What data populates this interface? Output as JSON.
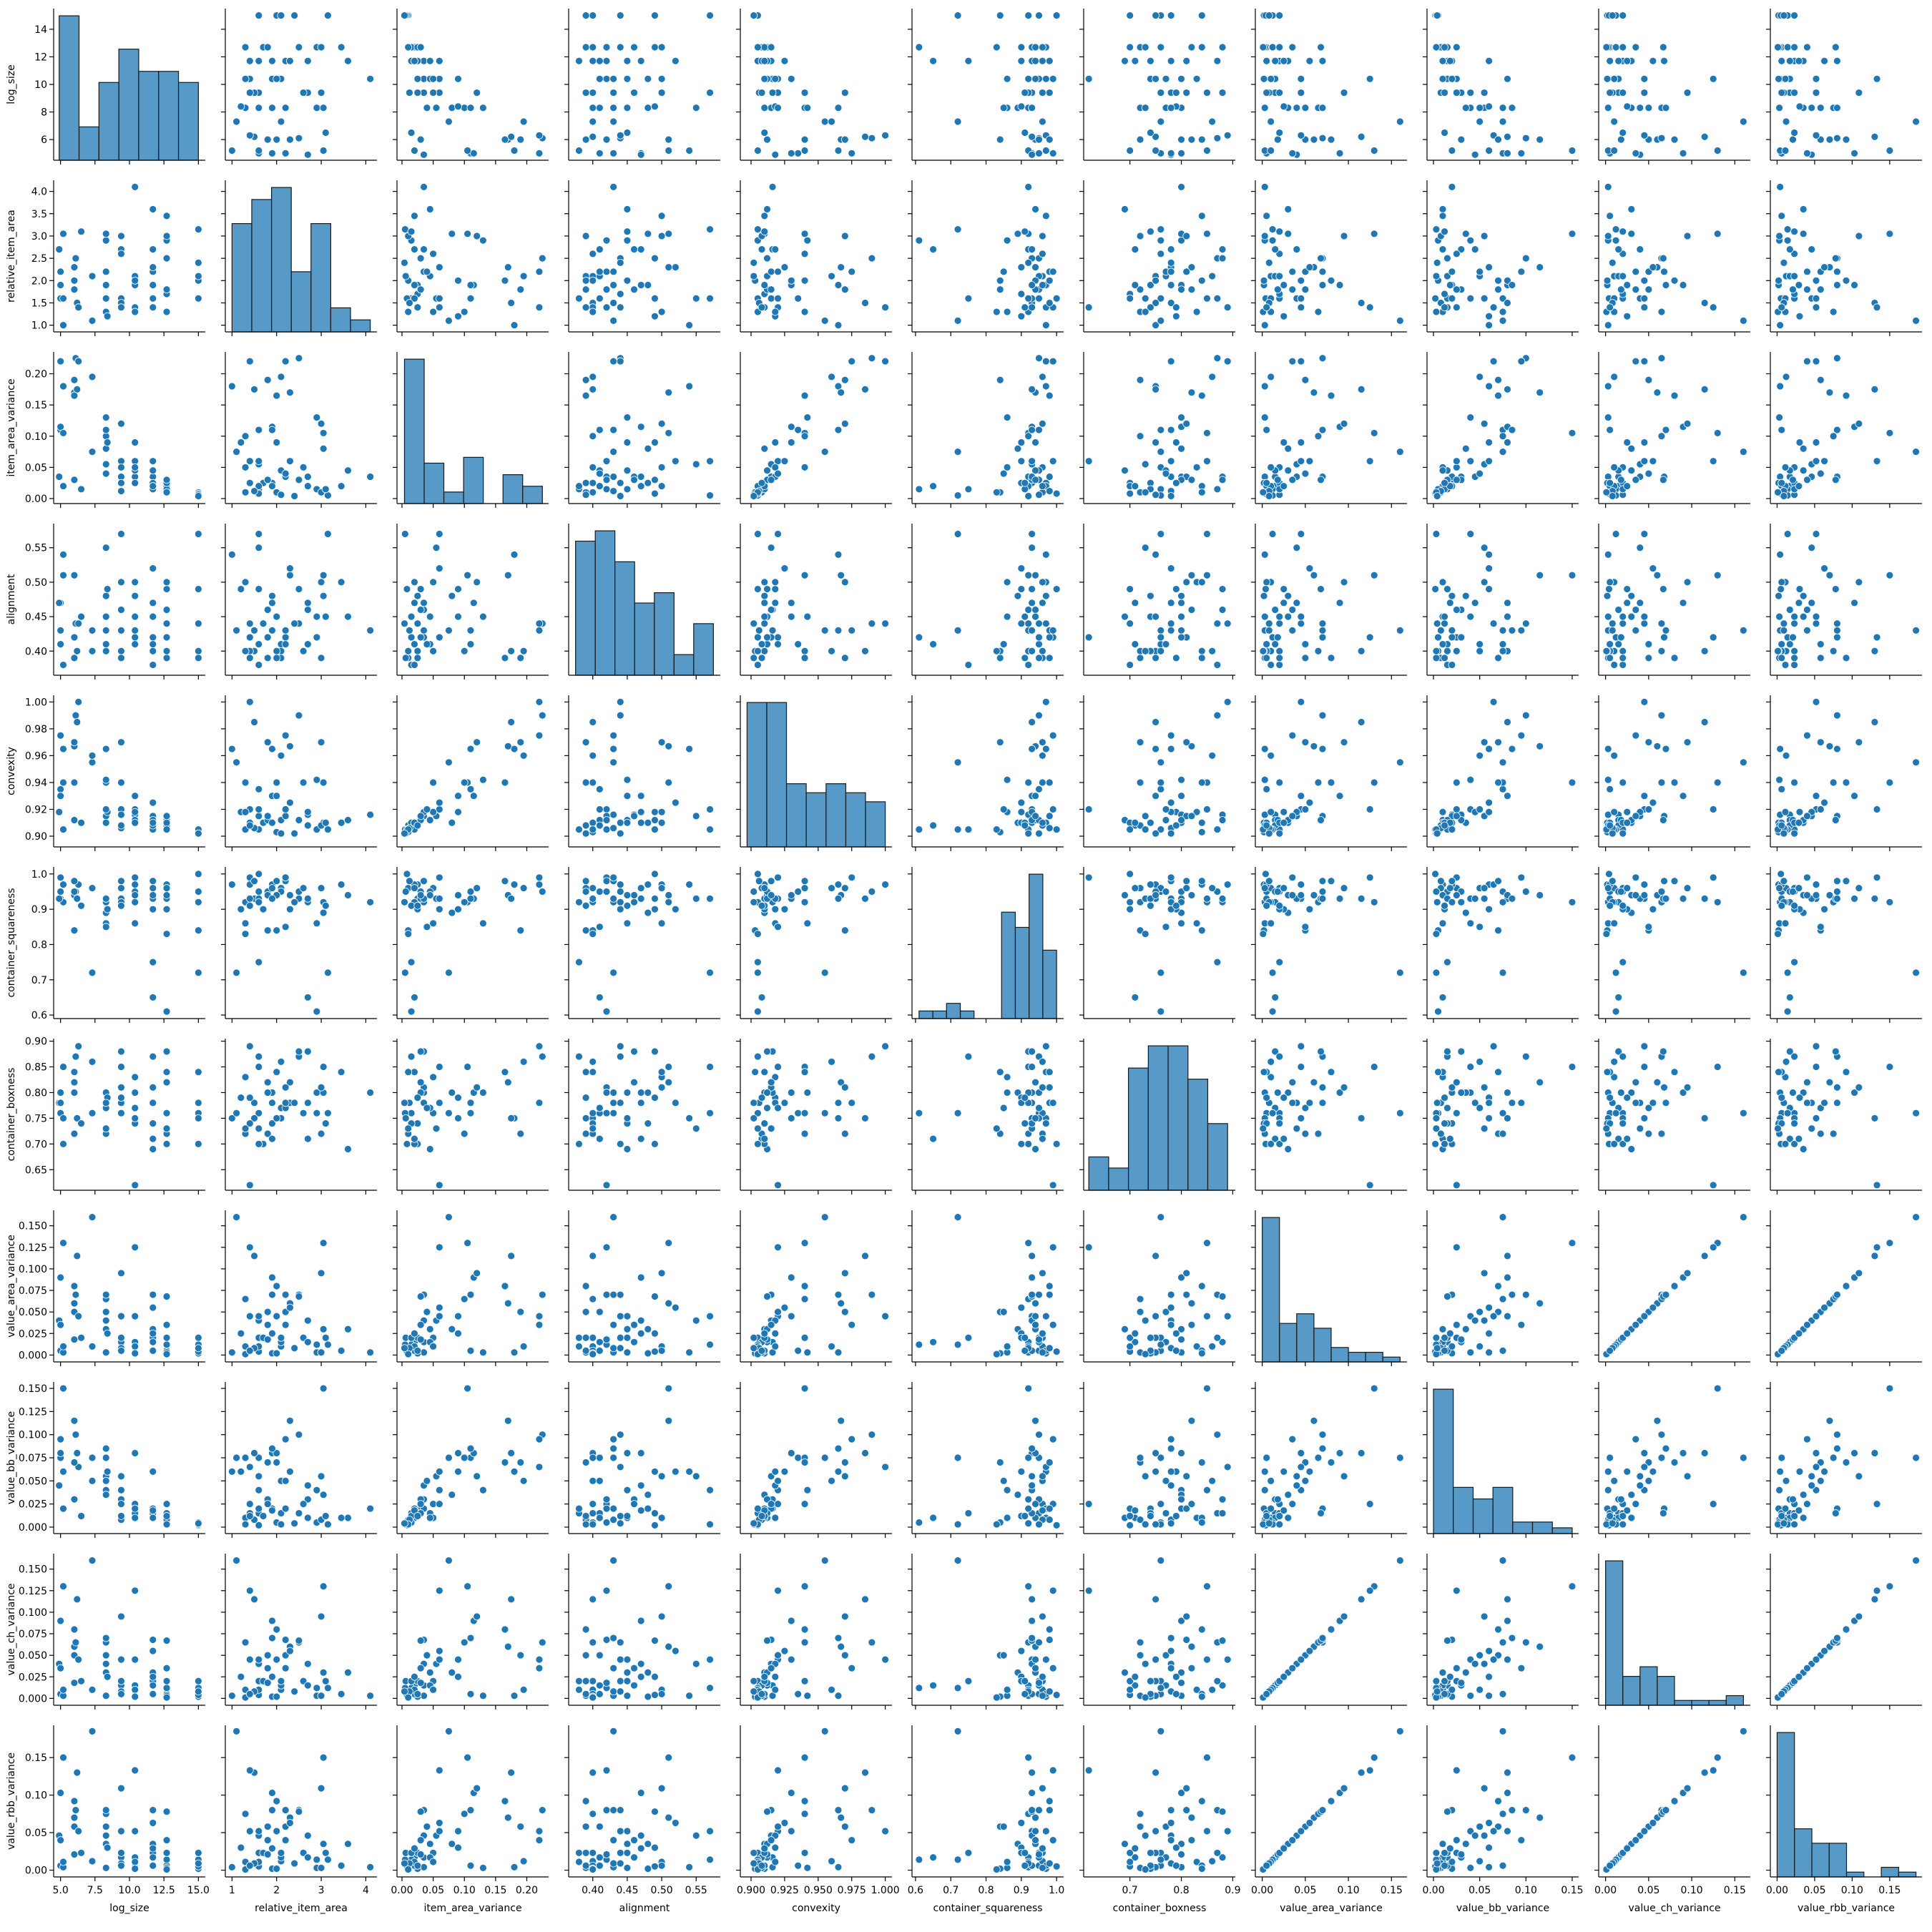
{
  "chart_data": {
    "type": "pairplot",
    "color": "#1f77b4",
    "variables": [
      {
        "name": "log_size",
        "lim": [
          4.5,
          15.5
        ],
        "xticks": [
          {
            "value": 5,
            "label": "5.0"
          },
          7.5,
          {
            "value": 10,
            "label": "10.0"
          },
          12.5,
          {
            "value": 15,
            "label": "15.0"
          }
        ],
        "yticks": [
          6,
          8,
          10,
          12,
          14
        ],
        "bins": [
          4.9,
          6.343,
          7.786,
          9.229,
          10.671,
          12.114,
          13.557,
          15.0
        ],
        "counts": [
          13,
          3,
          7,
          10,
          8,
          8,
          7
        ]
      },
      {
        "name": "relative_item_area",
        "lim": [
          0.85,
          4.25
        ],
        "xticks": [
          1,
          2,
          3,
          4
        ],
        "yticks": [
          {
            "value": 1,
            "label": "1.0"
          },
          1.5,
          {
            "value": 2,
            "label": "2.0"
          },
          2.5,
          {
            "value": 3,
            "label": "3.0"
          },
          3.5,
          {
            "value": 4,
            "label": "4.0"
          }
        ],
        "bins": [
          1.0,
          1.443,
          1.886,
          2.329,
          2.771,
          3.214,
          3.657,
          4.1
        ],
        "counts": [
          9,
          11,
          12,
          5,
          9,
          2,
          1
        ]
      },
      {
        "name": "item_area_variance",
        "lim": [
          -0.008,
          0.235
        ],
        "xticks": [
          {
            "value": 0,
            "label": "0.00"
          },
          0.05,
          {
            "value": 0.1,
            "label": "0.10"
          },
          0.15,
          {
            "value": 0.2,
            "label": "0.20"
          }
        ],
        "yticks": [
          {
            "value": 0,
            "label": "0.00"
          },
          0.05,
          {
            "value": 0.1,
            "label": "0.10"
          },
          0.15,
          {
            "value": 0.2,
            "label": "0.20"
          }
        ],
        "bins": [
          0.004,
          0.0356,
          0.0671,
          0.0987,
          0.1303,
          0.1619,
          0.1934,
          0.225
        ],
        "counts": [
          25,
          7,
          2,
          8,
          0,
          5,
          3
        ]
      },
      {
        "name": "alignment",
        "lim": [
          0.365,
          0.585
        ],
        "xticks": [
          {
            "value": 0.4,
            "label": "0.40"
          },
          0.45,
          {
            "value": 0.5,
            "label": "0.50"
          },
          0.55
        ],
        "yticks": [
          {
            "value": 0.4,
            "label": "0.40"
          },
          0.45,
          {
            "value": 0.5,
            "label": "0.50"
          },
          0.55
        ],
        "bins": [
          0.375,
          0.4036,
          0.4321,
          0.4607,
          0.4893,
          0.5179,
          0.5464,
          0.575
        ],
        "counts": [
          13,
          14,
          11,
          7,
          8,
          2,
          5
        ]
      },
      {
        "name": "convexity",
        "lim": [
          0.892,
          1.005
        ],
        "xticks": [
          {
            "value": 0.9,
            "label": "0.900"
          },
          0.925,
          {
            "value": 0.95,
            "label": "0.950"
          },
          0.975,
          {
            "value": 1,
            "label": "1.000"
          }
        ],
        "yticks": [
          {
            "value": 0.9,
            "label": "0.90"
          },
          0.92,
          0.94,
          0.96,
          0.98,
          {
            "value": 1,
            "label": "1.00"
          }
        ],
        "bins": [
          0.897,
          0.9117,
          0.9264,
          0.9411,
          0.9559,
          0.9706,
          0.9853,
          1.0
        ],
        "counts": [
          16,
          16,
          7,
          6,
          7,
          6,
          5
        ]
      },
      {
        "name": "container_squareness",
        "lim": [
          0.59,
          1.02
        ],
        "xticks": [
          0.6,
          0.7,
          0.8,
          0.9,
          {
            "value": 1,
            "label": "1.0"
          }
        ],
        "yticks": [
          0.6,
          0.7,
          0.8,
          0.9,
          {
            "value": 1,
            "label": "1.0"
          }
        ],
        "bins": [
          0.61,
          0.649,
          0.688,
          0.727,
          0.766,
          0.805,
          0.844,
          0.883,
          0.922,
          0.961,
          1.0
        ],
        "counts": [
          1,
          1,
          2,
          1,
          0,
          0,
          14,
          12,
          19,
          9
        ]
      },
      {
        "name": "container_boxness",
        "lim": [
          0.61,
          0.905
        ],
        "xticks": [
          0.7,
          0.8,
          0.9
        ],
        "yticks": [
          0.65,
          {
            "value": 0.7,
            "label": "0.70"
          },
          0.75,
          {
            "value": 0.8,
            "label": "0.80"
          },
          0.85,
          {
            "value": 0.9,
            "label": "0.90"
          }
        ],
        "bins": [
          0.62,
          0.6586,
          0.6971,
          0.7357,
          0.7743,
          0.8129,
          0.8514,
          0.89
        ],
        "counts": [
          3,
          2,
          11,
          13,
          13,
          10,
          6
        ]
      },
      {
        "name": "value_area_variance",
        "lim": [
          -0.008,
          0.168
        ],
        "xticks": [
          {
            "value": 0,
            "label": "0.00"
          },
          0.05,
          {
            "value": 0.1,
            "label": "0.10"
          },
          0.15
        ],
        "yticks": [
          {
            "value": 0,
            "label": "0.000"
          },
          0.025,
          {
            "value": 0.05,
            "label": "0.050"
          },
          0.075,
          {
            "value": 0.1,
            "label": "0.100"
          },
          0.125,
          {
            "value": 0.15,
            "label": "0.150"
          }
        ],
        "bins": [
          0,
          0.02,
          0.04,
          0.06,
          0.08,
          0.1,
          0.12,
          0.14,
          0.16
        ],
        "counts": [
          30,
          8,
          10,
          7,
          3,
          2,
          2,
          1
        ]
      },
      {
        "name": "value_bb_variance",
        "lim": [
          -0.007,
          0.157
        ],
        "xticks": [
          {
            "value": 0,
            "label": "0.00"
          },
          0.05,
          {
            "value": 0.1,
            "label": "0.10"
          },
          0.15
        ],
        "yticks": [
          {
            "value": 0,
            "label": "0.000"
          },
          0.025,
          {
            "value": 0.05,
            "label": "0.050"
          },
          0.075,
          {
            "value": 0.1,
            "label": "0.100"
          },
          0.125,
          {
            "value": 0.15,
            "label": "0.150"
          }
        ],
        "bins": [
          0,
          0.0214,
          0.0429,
          0.0643,
          0.0857,
          0.1071,
          0.1286,
          0.15
        ],
        "counts": [
          25,
          8,
          6,
          8,
          2,
          2,
          1
        ]
      },
      {
        "name": "value_ch_variance",
        "lim": [
          -0.008,
          0.168
        ],
        "xticks": [
          {
            "value": 0,
            "label": "0.00"
          },
          0.05,
          {
            "value": 0.1,
            "label": "0.10"
          },
          0.15
        ],
        "yticks": [
          {
            "value": 0,
            "label": "0.000"
          },
          0.025,
          {
            "value": 0.05,
            "label": "0.050"
          },
          0.075,
          {
            "value": 0.1,
            "label": "0.100"
          },
          0.125,
          {
            "value": 0.15,
            "label": "0.150"
          }
        ],
        "bins": [
          0,
          0.02,
          0.04,
          0.06,
          0.08,
          0.1,
          0.12,
          0.14,
          0.16
        ],
        "counts": [
          30,
          6,
          8,
          6,
          1,
          1,
          1,
          2
        ]
      },
      {
        "name": "value_rbb_variance",
        "lim": [
          -0.009,
          0.193
        ],
        "xticks": [
          {
            "value": 0,
            "label": "0.00"
          },
          0.05,
          {
            "value": 0.1,
            "label": "0.10"
          },
          0.15
        ],
        "yticks": [
          {
            "value": 0,
            "label": "0.00"
          },
          0.05,
          {
            "value": 0.1,
            "label": "0.10"
          },
          0.15
        ],
        "bins": [
          0,
          0.0231,
          0.0463,
          0.0694,
          0.0925,
          0.1156,
          0.1388,
          0.1619,
          0.185
        ],
        "counts": [
          30,
          10,
          7,
          7,
          1,
          0,
          2,
          1
        ]
      }
    ],
    "rows": [
      [
        5.0,
        1.6,
        0.11,
        0.41,
        0.935,
        0.95,
        0.76,
        0.005,
        0.075,
        0.005,
        0.006
      ],
      [
        5.0,
        1.9,
        0.115,
        0.47,
        0.93,
        0.93,
        0.8,
        0.09,
        0.08,
        0.09,
        0.103
      ],
      [
        5.2,
        3.05,
        0.105,
        0.51,
        0.94,
        0.92,
        0.85,
        0.13,
        0.15,
        0.13,
        0.15
      ],
      [
        5.2,
        1.0,
        0.18,
        0.54,
        0.965,
        0.97,
        0.75,
        0.003,
        0.06,
        0.003,
        0.004
      ],
      [
        6.0,
        2.3,
        0.17,
        0.51,
        0.967,
        0.94,
        0.82,
        0.06,
        0.115,
        0.06,
        0.07
      ],
      [
        6.0,
        1.8,
        0.19,
        0.39,
        0.97,
        0.84,
        0.72,
        0.05,
        0.07,
        0.05,
        0.058
      ],
      [
        6.1,
        2.5,
        0.225,
        0.44,
        0.99,
        0.95,
        0.87,
        0.07,
        0.1,
        0.065,
        0.08
      ],
      [
        6.2,
        1.5,
        0.175,
        0.4,
        0.985,
        0.93,
        0.75,
        0.115,
        0.08,
        0.115,
        0.13
      ],
      [
        6.3,
        1.4,
        0.22,
        0.44,
        1.0,
        0.97,
        0.89,
        0.045,
        0.065,
        0.045,
        0.052
      ],
      [
        7.3,
        1.1,
        0.075,
        0.43,
        0.955,
        0.72,
        0.76,
        0.16,
        0.075,
        0.16,
        0.185
      ],
      [
        7.3,
        2.1,
        0.195,
        0.4,
        0.96,
        0.96,
        0.86,
        0.01,
        0.05,
        0.01,
        0.012
      ],
      [
        8.3,
        1.3,
        0.1,
        0.4,
        0.94,
        0.92,
        0.72,
        0.065,
        0.075,
        0.065,
        0.075
      ],
      [
        8.3,
        2.9,
        0.13,
        0.45,
        0.942,
        0.86,
        0.8,
        0.003,
        0.04,
        0.003,
        0.003
      ],
      [
        8.3,
        1.6,
        0.055,
        0.55,
        0.915,
        0.93,
        0.73,
        0.04,
        0.055,
        0.04,
        0.046
      ],
      [
        8.3,
        3.05,
        0.08,
        0.48,
        0.91,
        0.89,
        0.8,
        0.03,
        0.035,
        0.03,
        0.035
      ],
      [
        8.4,
        1.2,
        0.09,
        0.49,
        0.918,
        0.9,
        0.79,
        0.025,
        0.06,
        0.025,
        0.03
      ],
      [
        9.4,
        1.6,
        0.06,
        0.57,
        0.92,
        0.93,
        0.85,
        0.045,
        0.04,
        0.045,
        0.052
      ],
      [
        9.4,
        2.7,
        0.035,
        0.46,
        0.916,
        0.92,
        0.88,
        0.015,
        0.03,
        0.015,
        0.017
      ],
      [
        9.4,
        2.6,
        0.05,
        0.4,
        0.94,
        0.96,
        0.76,
        0.02,
        0.025,
        0.02,
        0.023
      ],
      [
        10.4,
        1.4,
        0.06,
        0.42,
        0.92,
        0.99,
        0.62,
        0.125,
        0.025,
        0.125,
        0.133
      ],
      [
        10.4,
        4.1,
        0.035,
        0.43,
        0.916,
        0.92,
        0.8,
        0.003,
        0.02,
        0.003,
        0.004
      ],
      [
        10.4,
        2.1,
        0.045,
        0.41,
        0.912,
        0.95,
        0.77,
        0.015,
        0.015,
        0.015,
        0.017
      ],
      [
        10.4,
        1.3,
        0.05,
        0.5,
        0.918,
        0.86,
        0.83,
        0.01,
        0.01,
        0.01,
        0.011
      ],
      [
        10.4,
        1.9,
        0.025,
        0.48,
        0.91,
        0.97,
        0.74,
        0.002,
        0.02,
        0.002,
        0.002
      ],
      [
        11.7,
        2.2,
        0.035,
        0.42,
        0.915,
        0.98,
        0.81,
        0.07,
        0.02,
        0.068,
        0.08
      ],
      [
        11.7,
        1.4,
        0.025,
        0.4,
        0.91,
        0.93,
        0.74,
        0.005,
        0.015,
        0.005,
        0.006
      ],
      [
        11.7,
        3.6,
        0.045,
        0.45,
        0.912,
        0.94,
        0.69,
        0.03,
        0.01,
        0.03,
        0.035
      ],
      [
        11.7,
        1.6,
        0.015,
        0.38,
        0.905,
        0.75,
        0.87,
        0.02,
        0.015,
        0.02,
        0.023
      ],
      [
        11.7,
        2.7,
        0.02,
        0.41,
        0.908,
        0.65,
        0.71,
        0.015,
        0.01,
        0.015,
        0.017
      ],
      [
        12.7,
        2.5,
        0.03,
        0.49,
        0.912,
        0.93,
        0.88,
        0.068,
        0.015,
        0.067,
        0.078
      ],
      [
        12.7,
        3.45,
        0.02,
        0.5,
        0.91,
        0.97,
        0.84,
        0.005,
        0.01,
        0.005,
        0.006
      ],
      [
        12.7,
        2.9,
        0.015,
        0.42,
        0.905,
        0.61,
        0.76,
        0.012,
        0.005,
        0.012,
        0.014
      ],
      [
        12.7,
        3.0,
        0.01,
        0.39,
        0.908,
        0.96,
        0.72,
        0.003,
        0.008,
        0.003,
        0.003
      ],
      [
        12.7,
        1.7,
        0.025,
        0.44,
        0.91,
        0.9,
        0.7,
        0.02,
        0.012,
        0.02,
        0.023
      ],
      [
        15.0,
        3.15,
        0.005,
        0.57,
        0.905,
        0.72,
        0.76,
        0.012,
        0.003,
        0.012,
        0.014
      ],
      [
        15.0,
        2.0,
        0.01,
        0.4,
        0.903,
        0.84,
        0.84,
        0.002,
        0.005,
        0.002,
        0.002
      ],
      [
        15.0,
        1.6,
        0.008,
        0.49,
        0.905,
        1.0,
        0.7,
        0.004,
        0.002,
        0.004,
        0.005
      ],
      [
        15.0,
        2.1,
        0.006,
        0.39,
        0.902,
        0.95,
        0.75,
        0.02,
        0.003,
        0.02,
        0.023
      ],
      [
        6.0,
        1.8,
        0.03,
        0.42,
        0.912,
        0.95,
        0.8,
        0.018,
        0.03,
        0.018,
        0.021
      ],
      [
        5.2,
        1.6,
        0.02,
        0.38,
        0.905,
        0.92,
        0.7,
        0.01,
        0.02,
        0.01,
        0.011
      ],
      [
        4.9,
        2.7,
        0.035,
        0.47,
        0.918,
        0.93,
        0.78,
        0.04,
        0.045,
        0.04,
        0.046
      ],
      [
        6.5,
        3.1,
        0.015,
        0.45,
        0.91,
        0.91,
        0.74,
        0.02,
        0.012,
        0.02,
        0.023
      ],
      [
        9.4,
        1.5,
        0.012,
        0.43,
        0.906,
        0.98,
        0.78,
        0.008,
        0.008,
        0.008,
        0.009
      ],
      [
        8.3,
        2.2,
        0.04,
        0.41,
        0.92,
        0.85,
        0.77,
        0.05,
        0.05,
        0.05,
        0.058
      ],
      [
        12.7,
        1.8,
        0.03,
        0.46,
        0.915,
        0.94,
        0.82,
        0.035,
        0.025,
        0.035,
        0.04
      ],
      [
        11.7,
        2.3,
        0.06,
        0.52,
        0.925,
        0.9,
        0.78,
        0.055,
        0.06,
        0.055,
        0.063
      ],
      [
        10.4,
        2.0,
        0.09,
        0.45,
        0.93,
        0.94,
        0.75,
        0.045,
        0.08,
        0.045,
        0.052
      ],
      [
        8.3,
        1.9,
        0.11,
        0.43,
        0.965,
        0.93,
        0.78,
        0.07,
        0.085,
        0.07,
        0.08
      ],
      [
        9.4,
        3.0,
        0.12,
        0.5,
        0.97,
        0.96,
        0.81,
        0.095,
        0.055,
        0.095,
        0.109
      ],
      [
        6.0,
        2.0,
        0.165,
        0.39,
        0.94,
        0.98,
        0.84,
        0.08,
        0.07,
        0.08,
        0.092
      ],
      [
        12.7,
        1.3,
        0.01,
        0.4,
        0.905,
        0.83,
        0.73,
        0.001,
        0.003,
        0.001,
        0.001
      ],
      [
        15.0,
        2.4,
        0.004,
        0.44,
        0.902,
        0.92,
        0.78,
        0.008,
        0.004,
        0.008,
        0.009
      ],
      [
        11.7,
        1.9,
        0.02,
        0.47,
        0.91,
        0.96,
        0.71,
        0.025,
        0.018,
        0.025,
        0.029
      ],
      [
        5.0,
        2.2,
        0.22,
        0.43,
        0.975,
        0.99,
        0.78,
        0.035,
        0.095,
        0.035,
        0.04
      ],
      [
        9.4,
        1.4,
        0.025,
        0.39,
        0.908,
        0.91,
        0.79,
        0.005,
        0.012,
        0.005,
        0.006
      ]
    ]
  }
}
